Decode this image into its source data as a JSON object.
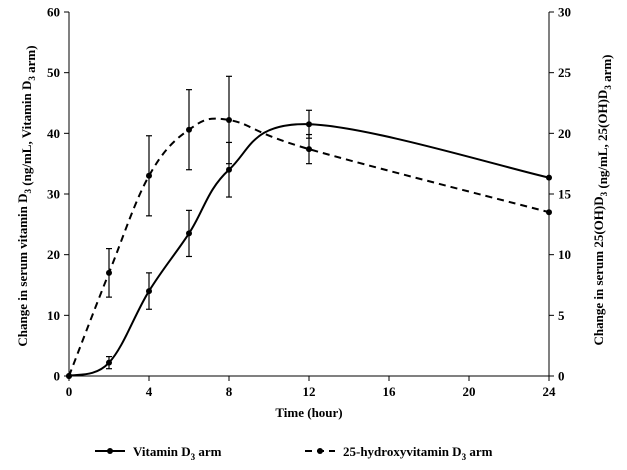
{
  "chart_data": {
    "type": "line",
    "x": [
      0,
      2,
      4,
      6,
      8,
      12,
      24
    ],
    "xlabel": "Time (hour)",
    "xticks": [
      0,
      4,
      8,
      12,
      16,
      20,
      24
    ],
    "xlim": [
      0,
      24
    ],
    "ylabel_left": "Change in serum vitamin D3 (ng/mL, Vitamin D3 arm)",
    "ylim_left": [
      0,
      60
    ],
    "yticks_left": [
      0,
      10,
      20,
      30,
      40,
      50,
      60
    ],
    "ylabel_right": "Change in serum 25(OH)D3 (ng/mL, 25(OH)D3 arm)",
    "ylim_right": [
      0,
      30
    ],
    "yticks_right": [
      0,
      5,
      10,
      15,
      20,
      25,
      30
    ],
    "series": [
      {
        "name": "Vitamin D3 arm",
        "axis": "left",
        "style": "solid",
        "values": [
          0,
          2.2,
          14,
          23.5,
          34,
          41.5,
          32.7
        ],
        "error": [
          0,
          1,
          3,
          3.8,
          4.5,
          2.3,
          0
        ]
      },
      {
        "name": "25-hydroxyvitamin D3 arm",
        "axis": "right",
        "style": "dashed",
        "values": [
          0,
          8.5,
          16.5,
          20.3,
          21.1,
          18.7,
          13.5
        ],
        "error": [
          0,
          2,
          3.3,
          3.3,
          3.6,
          1.2,
          0
        ]
      }
    ],
    "legend": [
      {
        "label": "Vitamin D",
        "sub": "3",
        "suffix": " arm",
        "style": "solid"
      },
      {
        "label": "25-hydroxyvitamin D",
        "sub": "3",
        "suffix": " arm",
        "style": "dashed"
      }
    ],
    "legend_position": "bottom"
  },
  "colors": {
    "line": "#000000",
    "axis": "#000000"
  }
}
